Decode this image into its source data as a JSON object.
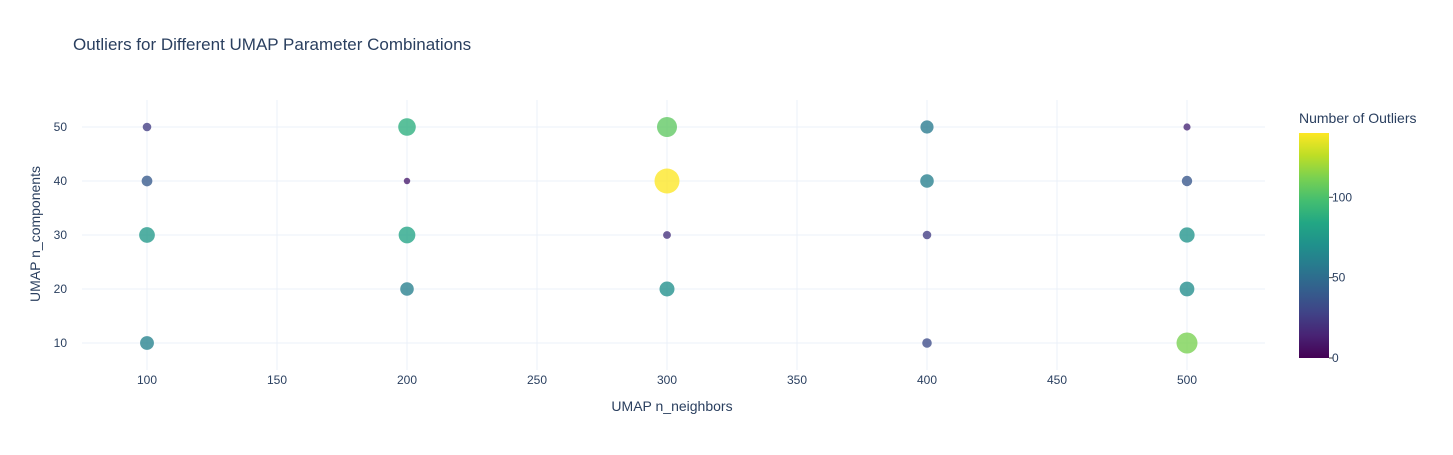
{
  "chart_data": {
    "type": "scatter",
    "title": "Outliers for Different UMAP Parameter Combinations",
    "xlabel": "UMAP n_neighbors",
    "ylabel": "UMAP n_components",
    "xlim": [
      75,
      530
    ],
    "ylim": [
      5,
      55
    ],
    "xticks": [
      100,
      150,
      200,
      250,
      300,
      350,
      400,
      450,
      500
    ],
    "yticks": [
      10,
      20,
      30,
      40,
      50
    ],
    "grid": true,
    "colorbar": {
      "title": "Number of Outliers",
      "colorscale": "Viridis",
      "range": [
        0,
        140
      ],
      "ticks": [
        0,
        50,
        100
      ]
    },
    "marker_size_encodes": "Number of Outliers",
    "points": [
      {
        "x": 100,
        "y": 50,
        "value": 25
      },
      {
        "x": 100,
        "y": 40,
        "value": 40
      },
      {
        "x": 100,
        "y": 30,
        "value": 75
      },
      {
        "x": 100,
        "y": 10,
        "value": 62
      },
      {
        "x": 200,
        "y": 50,
        "value": 88
      },
      {
        "x": 200,
        "y": 40,
        "value": 10
      },
      {
        "x": 200,
        "y": 30,
        "value": 82
      },
      {
        "x": 200,
        "y": 20,
        "value": 60
      },
      {
        "x": 300,
        "y": 50,
        "value": 105
      },
      {
        "x": 300,
        "y": 40,
        "value": 140
      },
      {
        "x": 300,
        "y": 30,
        "value": 20
      },
      {
        "x": 300,
        "y": 20,
        "value": 70
      },
      {
        "x": 400,
        "y": 50,
        "value": 57
      },
      {
        "x": 400,
        "y": 40,
        "value": 60
      },
      {
        "x": 400,
        "y": 30,
        "value": 25
      },
      {
        "x": 400,
        "y": 10,
        "value": 32
      },
      {
        "x": 500,
        "y": 50,
        "value": 15
      },
      {
        "x": 500,
        "y": 40,
        "value": 38
      },
      {
        "x": 500,
        "y": 30,
        "value": 72
      },
      {
        "x": 500,
        "y": 20,
        "value": 68
      },
      {
        "x": 500,
        "y": 10,
        "value": 112
      }
    ]
  }
}
